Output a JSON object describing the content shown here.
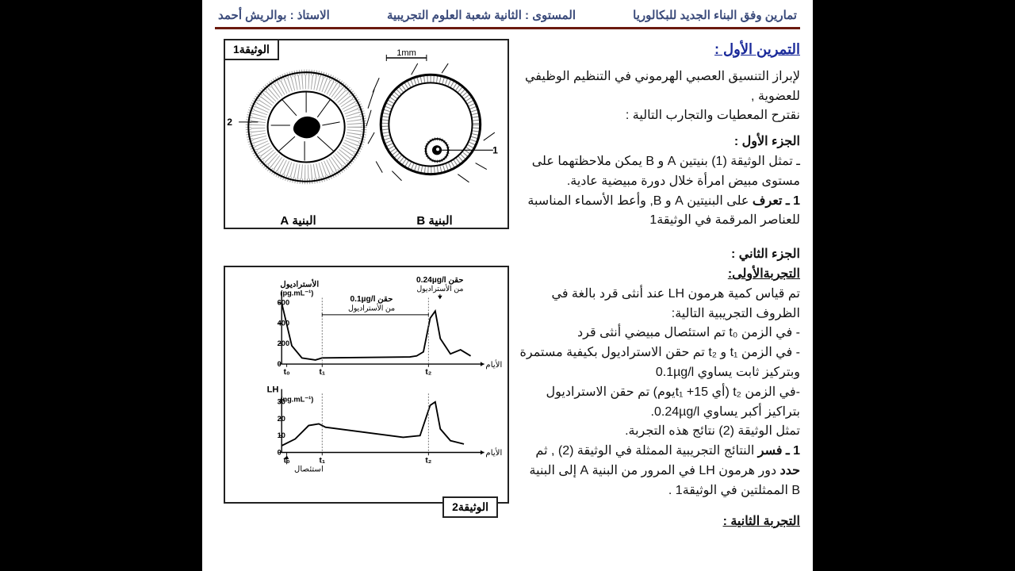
{
  "header": {
    "title_right": "تمارين وفق البناء الجديد للبكالوريا",
    "title_mid": "المستوى : الثانية شعبة العلوم التجريبية",
    "title_left": "الاستاذ : بوالريش أحمد"
  },
  "exercise": {
    "title": "التمرين الأول :",
    "intro1": "لإبراز التنسيق العصبي الهرموني في التنظيم الوظيفي للعضوية ,",
    "intro2": "نقترح المعطيات والتجارب التالية :",
    "part1_head": "الجزء الأول :",
    "part1_l1": "ـ تمثل الوثيقة (1) بنيتين A و B يمكن ملاحظتهما على مستوى مبيض امرأة خلال دورة مبيضية عادية.",
    "part1_q1b": "1 ـ تعرف",
    "part1_q1a": " على البنيتين A و B, وأعط الأسماء المناسبة للعناصر المرقمة في الوثيقة1",
    "part2_head": "الجزء الثاني :",
    "exp1_head": "التجربةالأولى:",
    "p2_l1": "تم قياس كمية هرمون LH عند أنثى قرد بالغة في الظروف التجريبية التالية:",
    "p2_l2": "- في الزمن t₀ تم استئصال مبيضي أنثى قرد",
    "p2_l3": "- في الزمن t₁ و t₂ تم حقن الاستراديول بكيفية مستمرة وبتركيز ثابت يساوي 0.1µg/l",
    "p2_l4": "-في الزمن t₂ (أي t₁ +15يوم) تم حقن الاستراديول بتراكيز أكبر يساوي 0.24µg/l.",
    "p2_l5": "تمثل الوثيقة (2) نتائج هذه التجربة.",
    "p2_q1a": "1 ـ فسر",
    "p2_q1b": " النتائج التجريبية الممثلة في الوثيقة (2) , ثم ",
    "p2_q1c": "حدد",
    "p2_q1d": " دور هرمون LH في المرور من البنية A إلى البنية B الممثلتين في الوثيقة1 .",
    "exp2_head": "التجربة الثانية :"
  },
  "fig1": {
    "label": "الوثيقة1",
    "capA": "البنية A",
    "capB": "البنية B",
    "scale": "1mm",
    "mark1": "1",
    "mark2": "2"
  },
  "fig2": {
    "label": "الوثيقة2",
    "estradiol_label": "الأستراديول",
    "estradiol_unit": "(pg.mL⁻¹)",
    "lh_label": "LH",
    "lh_unit": "(ng.mL⁻¹)",
    "inj1": "حقن 0.1µg/l من الأستراديول",
    "inj2": "حقن 0.24µg/l من الأستراديول",
    "xaxis": "الأيام",
    "excision": "استئصال",
    "t0": "t₀",
    "t1": "t₁",
    "t2": "t₂",
    "top_chart": {
      "type": "line",
      "y_ticks": [
        0,
        200,
        400,
        600
      ],
      "ylim": [
        0,
        650
      ],
      "series": [
        {
          "x": 0,
          "y": 600
        },
        {
          "x": 0.3,
          "y": 180
        },
        {
          "x": 0.6,
          "y": 60
        },
        {
          "x": 1.0,
          "y": 40
        },
        {
          "x": 1.2,
          "y": 60
        },
        {
          "x": 3.8,
          "y": 70
        },
        {
          "x": 4.0,
          "y": 80
        },
        {
          "x": 4.2,
          "y": 120
        },
        {
          "x": 4.4,
          "y": 450
        },
        {
          "x": 4.55,
          "y": 520
        },
        {
          "x": 4.7,
          "y": 250
        },
        {
          "x": 5.0,
          "y": 100
        },
        {
          "x": 5.3,
          "y": 140
        },
        {
          "x": 5.6,
          "y": 80
        }
      ],
      "line_color": "#000",
      "line_width": 2,
      "grid_color": "#888"
    },
    "bot_chart": {
      "type": "line",
      "y_ticks": [
        0,
        10,
        20,
        30
      ],
      "ylim": [
        0,
        35
      ],
      "series": [
        {
          "x": 0,
          "y": 4
        },
        {
          "x": 0.4,
          "y": 8
        },
        {
          "x": 0.8,
          "y": 16
        },
        {
          "x": 1.1,
          "y": 17
        },
        {
          "x": 1.3,
          "y": 15
        },
        {
          "x": 3.6,
          "y": 9
        },
        {
          "x": 4.1,
          "y": 10
        },
        {
          "x": 4.4,
          "y": 28
        },
        {
          "x": 4.55,
          "y": 30
        },
        {
          "x": 4.7,
          "y": 14
        },
        {
          "x": 5.0,
          "y": 7
        },
        {
          "x": 5.4,
          "y": 5
        }
      ],
      "line_color": "#000",
      "line_width": 2
    },
    "x_range": [
      0,
      6
    ],
    "t_positions": {
      "t0": 0.15,
      "t1": 1.2,
      "t2": 4.35
    }
  },
  "colors": {
    "header_text": "#3a4a7a",
    "rule": "#6b1a0f",
    "link": "#1a2a9a"
  }
}
